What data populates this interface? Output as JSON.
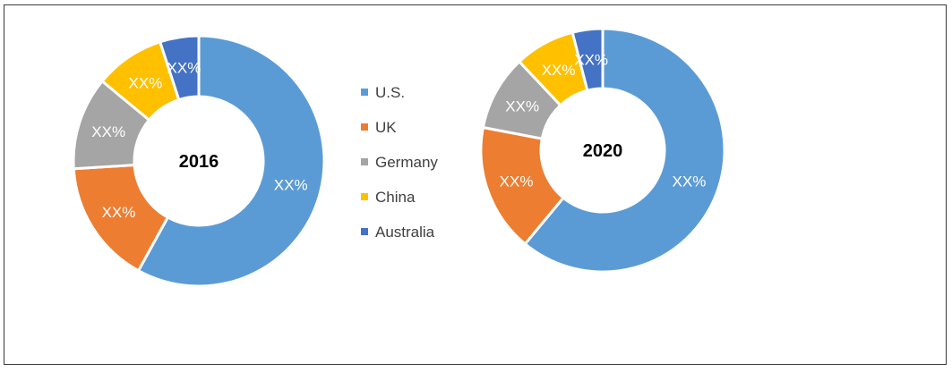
{
  "chart_data": [
    {
      "type": "pie",
      "subtype": "donut",
      "center_label": "2016",
      "categories": [
        "U.S.",
        "UK",
        "Germany",
        "China",
        "Australia"
      ],
      "values": [
        58,
        16,
        12,
        9,
        5
      ],
      "slice_labels": [
        "XX%",
        "XX%",
        "XX%",
        "XX%",
        "XX%"
      ]
    },
    {
      "type": "pie",
      "subtype": "donut",
      "center_label": "2020",
      "categories": [
        "U.S.",
        "UK",
        "Germany",
        "China",
        "Australia"
      ],
      "values": [
        61,
        17,
        10,
        8,
        4
      ],
      "slice_labels": [
        "XX%",
        "XX%",
        "XX%",
        "XX%",
        "XX%"
      ]
    }
  ],
  "legend": {
    "placement": "between charts",
    "items": [
      {
        "label": "U.S.",
        "color": "#5B9BD5"
      },
      {
        "label": "UK",
        "color": "#ED7D31"
      },
      {
        "label": "Germany",
        "color": "#A5A5A5"
      },
      {
        "label": "China",
        "color": "#FFC000"
      },
      {
        "label": "Australia",
        "color": "#4472C4"
      }
    ]
  }
}
